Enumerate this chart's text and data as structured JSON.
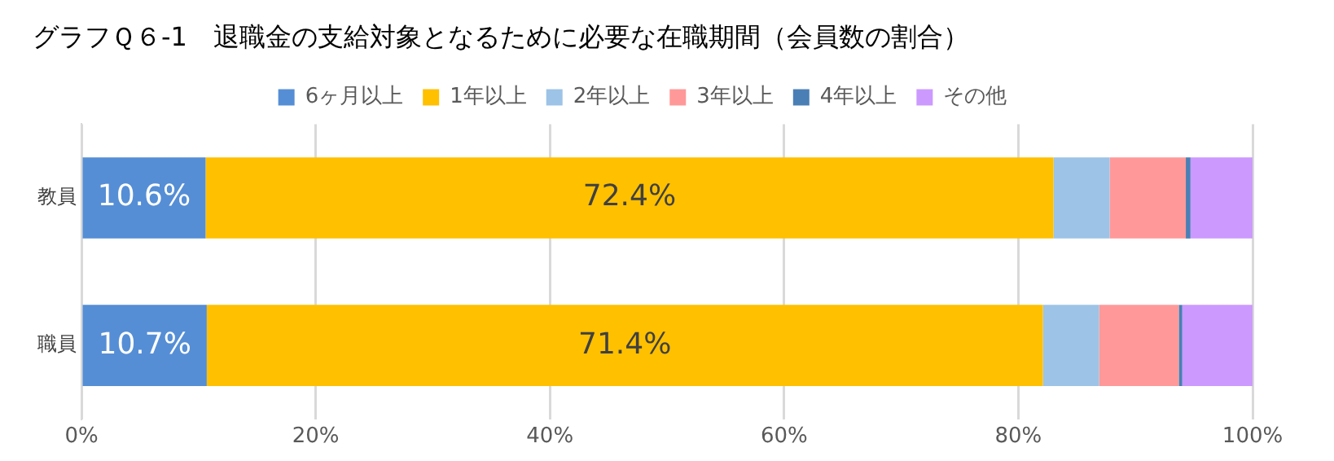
{
  "chart_data": {
    "type": "bar",
    "orientation": "horizontal",
    "stacked": true,
    "title": "グラフＱ６-1　退職金の支給対象となるために必要な在職期間（会員数の割合）",
    "categories": [
      "教員",
      "職員"
    ],
    "series": [
      {
        "name": "6ヶ月以上",
        "color": "#558ed5",
        "values": [
          10.6,
          10.7
        ],
        "value_labels": [
          "10.6%",
          "10.7%"
        ]
      },
      {
        "name": "1年以上",
        "color": "#ffc000",
        "values": [
          72.4,
          71.4
        ],
        "value_labels": [
          "72.4%",
          "71.4%"
        ]
      },
      {
        "name": "2年以上",
        "color": "#9dc3e6",
        "values": [
          4.8,
          4.8
        ]
      },
      {
        "name": "3年以上",
        "color": "#ff9999",
        "values": [
          6.5,
          6.8
        ]
      },
      {
        "name": "4年以上",
        "color": "#4a7fb5",
        "values": [
          0.4,
          0.3
        ]
      },
      {
        "name": "その他",
        "color": "#cc99ff",
        "values": [
          5.3,
          6.0
        ]
      }
    ],
    "xlim": [
      0,
      100
    ],
    "xticks": [
      {
        "value": 0,
        "label": "0%"
      },
      {
        "value": 20,
        "label": "20%"
      },
      {
        "value": 40,
        "label": "40%"
      },
      {
        "value": 60,
        "label": "60%"
      },
      {
        "value": 80,
        "label": "80%"
      },
      {
        "value": 100,
        "label": "100%"
      }
    ],
    "grid": "x",
    "legend": "top"
  }
}
